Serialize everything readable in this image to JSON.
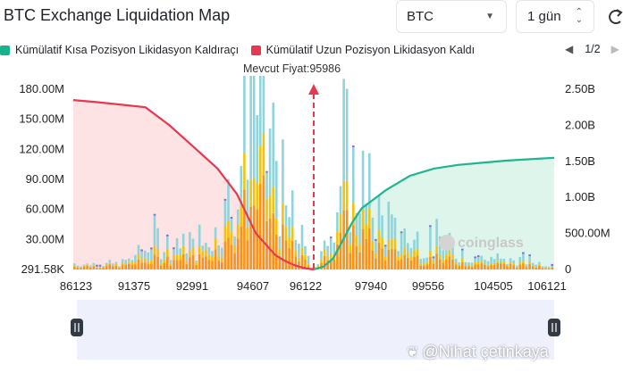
{
  "header": {
    "title": "BTC Exchange Liquidation Map",
    "coin_select": "BTC",
    "range_select": "1 gün",
    "refresh_icon": "refresh-icon"
  },
  "legend": {
    "items": [
      {
        "label": "Kümülatif Kısa Pozisyon Likidasyon Kaldıraçı",
        "color": "#16b48c"
      },
      {
        "label": "Kümülatif Uzun Pozisyon Likidasyon Kaldı",
        "color": "#e8384f"
      }
    ],
    "pager": "1/2"
  },
  "current_price_label": "Mevcut Fiyat:95986",
  "watermark_chart": "coinglass",
  "watermark_user": "@Nihat çetinkaya",
  "colors": {
    "long_line": "#e8384f",
    "short_line": "#1fb58f",
    "bar_orange": "#f7931a",
    "bar_yellow": "#f4c20d",
    "bar_cyan": "#8fd4dd",
    "bar_purple": "#8b6cc8",
    "long_fill": "#fde3e4",
    "short_fill": "#def5ec",
    "marker": "#e8384f"
  },
  "chart_data": {
    "type": "bar",
    "y_left_ticks": [
      "180.00M",
      "150.00M",
      "120.00M",
      "90.00M",
      "60.00M",
      "30.00M",
      "291.58K"
    ],
    "y_right_ticks": [
      "2.50B",
      "2.00B",
      "1.50B",
      "1.00B",
      "500.00M",
      "0"
    ],
    "x_ticks": [
      "86123",
      "91375",
      "92991",
      "94607",
      "96122",
      "97940",
      "99556",
      "104505",
      "106121"
    ],
    "y_left_range": [
      291580,
      180000000
    ],
    "y_right_range": [
      0,
      2500000000
    ],
    "current_price": 95986,
    "price_marker_position": 0.5,
    "long_cumulative": {
      "name": "Kümülatif Uzun Pozisyon Likidasyon Kaldıraçı",
      "x": [
        0,
        0.05,
        0.15,
        0.2,
        0.25,
        0.3,
        0.34,
        0.38,
        0.4,
        0.42,
        0.44,
        0.46,
        0.48,
        0.5
      ],
      "y": [
        2350000000.0,
        2320000000.0,
        2250000000.0,
        2000000000.0,
        1700000000.0,
        1400000000.0,
        1050000000.0,
        500000000.0,
        350000000.0,
        200000000.0,
        120000000.0,
        60000000.0,
        20000000.0,
        0
      ]
    },
    "short_cumulative": {
      "name": "Kümülatif Kısa Pozisyon Likidasyon Kaldıraçı",
      "x": [
        0.5,
        0.52,
        0.54,
        0.56,
        0.58,
        0.6,
        0.62,
        0.65,
        0.7,
        0.75,
        0.8,
        0.85,
        0.9,
        0.95,
        1.0
      ],
      "y": [
        0,
        40000000.0,
        150000000.0,
        400000000.0,
        650000000.0,
        850000000.0,
        950000000.0,
        1100000000.0,
        1300000000.0,
        1400000000.0,
        1450000000.0,
        1480000000.0,
        1510000000.0,
        1530000000.0,
        1550000000.0
      ]
    },
    "bar_series": [
      {
        "color": "#f7931a"
      },
      {
        "color": "#f4c20d"
      },
      {
        "color": "#8fd4dd"
      }
    ],
    "bar_profile": [
      {
        "x": 0.0,
        "orange": 3,
        "yellow": 1,
        "cyan": 2
      },
      {
        "x": 0.1,
        "orange": 3,
        "yellow": 1,
        "cyan": 2
      },
      {
        "x": 0.18,
        "orange": 10,
        "yellow": 6,
        "cyan": 14
      },
      {
        "x": 0.26,
        "orange": 10,
        "yellow": 5,
        "cyan": 10
      },
      {
        "x": 0.32,
        "orange": 22,
        "yellow": 12,
        "cyan": 25
      },
      {
        "x": 0.36,
        "orange": 55,
        "yellow": 25,
        "cyan": 60
      },
      {
        "x": 0.38,
        "orange": 70,
        "yellow": 30,
        "cyan": 80
      },
      {
        "x": 0.4,
        "orange": 55,
        "yellow": 25,
        "cyan": 60
      },
      {
        "x": 0.44,
        "orange": 25,
        "yellow": 12,
        "cyan": 30
      },
      {
        "x": 0.48,
        "orange": 8,
        "yellow": 4,
        "cyan": 12
      },
      {
        "x": 0.5,
        "orange": 1,
        "yellow": 0,
        "cyan": 0
      },
      {
        "x": 0.52,
        "orange": 6,
        "yellow": 3,
        "cyan": 8
      },
      {
        "x": 0.56,
        "orange": 40,
        "yellow": 20,
        "cyan": 45
      },
      {
        "x": 0.6,
        "orange": 30,
        "yellow": 15,
        "cyan": 35
      },
      {
        "x": 0.66,
        "orange": 14,
        "yellow": 7,
        "cyan": 18
      },
      {
        "x": 0.75,
        "orange": 10,
        "yellow": 5,
        "cyan": 12
      },
      {
        "x": 0.85,
        "orange": 5,
        "yellow": 2,
        "cyan": 5
      },
      {
        "x": 1.0,
        "orange": 3,
        "yellow": 1,
        "cyan": 2
      }
    ]
  }
}
